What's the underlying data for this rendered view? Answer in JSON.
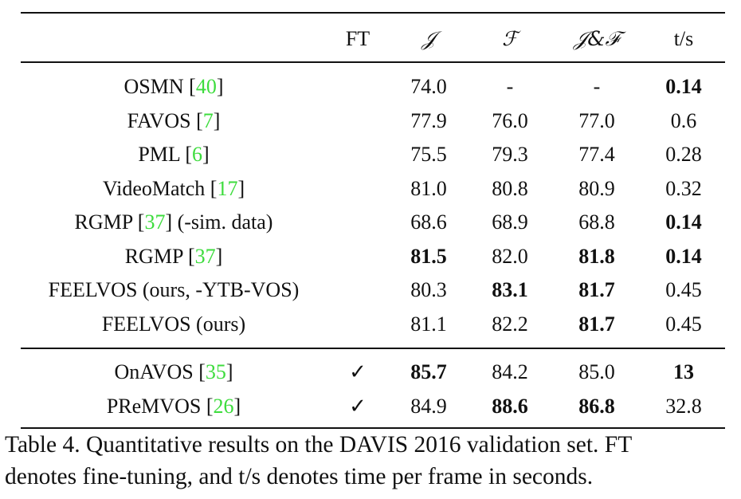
{
  "table": {
    "headers": {
      "method": "",
      "ft": "FT",
      "j": "𝒥",
      "f": "ℱ",
      "jf": "𝒥&ℱ",
      "ts": "t/s"
    },
    "rows": [
      {
        "name": "OSMN",
        "ref": "40",
        "suffix": "",
        "ft": "",
        "j": "74.0",
        "f": "-",
        "jf": "-",
        "ts": "0.14",
        "bold": [
          "ts"
        ]
      },
      {
        "name": "FAVOS",
        "ref": "7",
        "suffix": "",
        "ft": "",
        "j": "77.9",
        "f": "76.0",
        "jf": "77.0",
        "ts": "0.6",
        "bold": []
      },
      {
        "name": "PML",
        "ref": "6",
        "suffix": "",
        "ft": "",
        "j": "75.5",
        "f": "79.3",
        "jf": "77.4",
        "ts": "0.28",
        "bold": []
      },
      {
        "name": "VideoMatch",
        "ref": "17",
        "suffix": "",
        "ft": "",
        "j": "81.0",
        "f": "80.8",
        "jf": "80.9",
        "ts": "0.32",
        "bold": []
      },
      {
        "name": "RGMP",
        "ref": "37",
        "suffix": " (-sim. data)",
        "ft": "",
        "j": "68.6",
        "f": "68.9",
        "jf": "68.8",
        "ts": "0.14",
        "bold": [
          "ts"
        ]
      },
      {
        "name": "RGMP",
        "ref": "37",
        "suffix": "",
        "ft": "",
        "j": "81.5",
        "f": "82.0",
        "jf": "81.8",
        "ts": "0.14",
        "bold": [
          "j",
          "jf",
          "ts"
        ]
      },
      {
        "name": "FEELVOS (ours, -YTB-VOS)",
        "ref": "",
        "suffix": "",
        "ft": "",
        "j": "80.3",
        "f": "83.1",
        "jf": "81.7",
        "ts": "0.45",
        "bold": [
          "f",
          "jf"
        ]
      },
      {
        "name": "FEELVOS (ours)",
        "ref": "",
        "suffix": "",
        "ft": "",
        "j": "81.1",
        "f": "82.2",
        "jf": "81.7",
        "ts": "0.45",
        "bold": [
          "jf"
        ]
      }
    ],
    "ft_rows": [
      {
        "name": "OnAVOS",
        "ref": "35",
        "suffix": "",
        "ft": "✓",
        "j": "85.7",
        "f": "84.2",
        "jf": "85.0",
        "ts": "13",
        "bold": [
          "j",
          "ts"
        ]
      },
      {
        "name": "PReMVOS",
        "ref": "26",
        "suffix": "",
        "ft": "✓",
        "j": "84.9",
        "f": "88.6",
        "jf": "86.8",
        "ts": "32.8",
        "bold": [
          "f",
          "jf"
        ]
      }
    ]
  },
  "caption": {
    "line1": "Table 4. Quantitative results on the DAVIS 2016 validation set. FT",
    "line2": "denotes fine-tuning, and t/s denotes time per frame in seconds."
  }
}
